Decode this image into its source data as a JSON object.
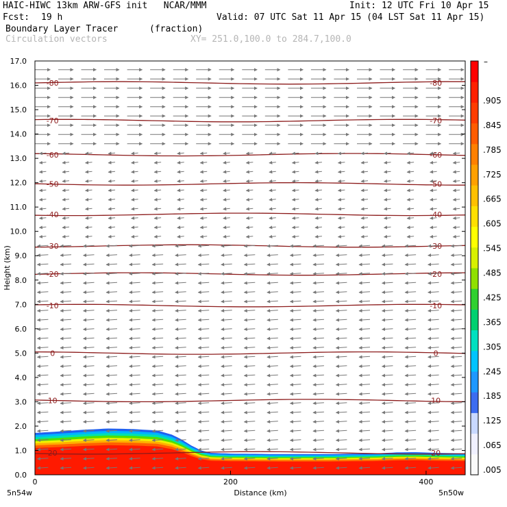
{
  "header": {
    "title": "HAIC-HIWC 13km ARW-GFS init   NCAR/MMM",
    "init": "Init: 12 UTC Fri 10 Apr 15",
    "fcst_label": "Fcst:",
    "fcst_value": "19 h",
    "valid": "Valid: 07 UTC Sat 11 Apr 15 (04 LST Sat 11 Apr 15)",
    "field1_name": "Boundary Layer Tracer",
    "field1_units": "(fraction)",
    "field2_name": "Circulation vectors",
    "xy_range": "XY= 251.0,100.0 to 284.7,100.0"
  },
  "chart_data": {
    "type": "heatmap",
    "xlabel": "Distance (km)",
    "ylabel": "Height (km)",
    "xlim": [
      0,
      440
    ],
    "ylim": [
      0,
      17
    ],
    "x_ticks": [
      {
        "value": 0,
        "label": "0"
      },
      {
        "value": 200,
        "label": "200"
      },
      {
        "value": 400,
        "label": "400"
      }
    ],
    "y_ticks": [
      {
        "value": 0,
        "label": "0.0"
      },
      {
        "value": 1,
        "label": "1.0"
      },
      {
        "value": 2,
        "label": "2.0"
      },
      {
        "value": 3,
        "label": "3.0"
      },
      {
        "value": 4,
        "label": "4.0"
      },
      {
        "value": 5,
        "label": "5.0"
      },
      {
        "value": 6,
        "label": "6.0"
      },
      {
        "value": 7,
        "label": "7.0"
      },
      {
        "value": 8,
        "label": "8.0"
      },
      {
        "value": 9,
        "label": "9.0"
      },
      {
        "value": 10,
        "label": "10.0"
      },
      {
        "value": 11,
        "label": "11.0"
      },
      {
        "value": 12,
        "label": "12.0"
      },
      {
        "value": 13,
        "label": "13.0"
      },
      {
        "value": 14,
        "label": "14.0"
      },
      {
        "value": 15,
        "label": "15.0"
      },
      {
        "value": 16,
        "label": "16.0"
      },
      {
        "value": 17,
        "label": "17.0"
      }
    ],
    "x_end_labels": {
      "left": "5n54w",
      "right": "5n50w"
    },
    "colorbar": {
      "top_label": "–",
      "labels": [
        ".905",
        ".845",
        ".785",
        ".725",
        ".665",
        ".605",
        ".545",
        ".485",
        ".425",
        ".365",
        ".305",
        ".245",
        ".185",
        ".125",
        ".065",
        ".005"
      ],
      "colors": [
        "#fafafa",
        "#f0f0ff",
        "#c8d8ff",
        "#3c6cf0",
        "#1e98ff",
        "#00c4ff",
        "#00e0c0",
        "#00d070",
        "#30d030",
        "#90e000",
        "#d8f000",
        "#ffff00",
        "#ffe000",
        "#ffc000",
        "#ffa000",
        "#ff8000",
        "#ff5c00",
        "#ff3c00",
        "#ff2000",
        "#ff0000"
      ]
    },
    "tracer": {
      "x": [
        0,
        25,
        50,
        75,
        100,
        125,
        140,
        150,
        160,
        170,
        180,
        200,
        250,
        300,
        350,
        370,
        390,
        410,
        440
      ],
      "top_height": [
        1.72,
        1.78,
        1.85,
        1.9,
        1.88,
        1.82,
        1.65,
        1.45,
        1.2,
        1.0,
        0.9,
        0.87,
        0.85,
        0.85,
        0.88,
        0.92,
        0.93,
        0.9,
        0.88
      ]
    },
    "temperature_contours": [
      {
        "label": "-80",
        "height": 16.1
      },
      {
        "label": "-70",
        "height": 14.55
      },
      {
        "label": "-60",
        "height": 13.15
      },
      {
        "label": "-50",
        "height": 11.95
      },
      {
        "label": "-40",
        "height": 10.7
      },
      {
        "label": "-30",
        "height": 9.4
      },
      {
        "label": "-20",
        "height": 8.25
      },
      {
        "label": "-10",
        "height": 6.95
      },
      {
        "label": "0",
        "height": 5.0
      },
      {
        "label": "10",
        "height": 3.05
      },
      {
        "label": "20",
        "height": 0.9
      }
    ],
    "wind_bands": [
      {
        "from": 13.6,
        "to": 17.0,
        "direction": "east"
      },
      {
        "from": 9.6,
        "to": 13.6,
        "direction": "west"
      },
      {
        "from": 0.0,
        "to": 9.6,
        "direction": "west"
      }
    ]
  }
}
